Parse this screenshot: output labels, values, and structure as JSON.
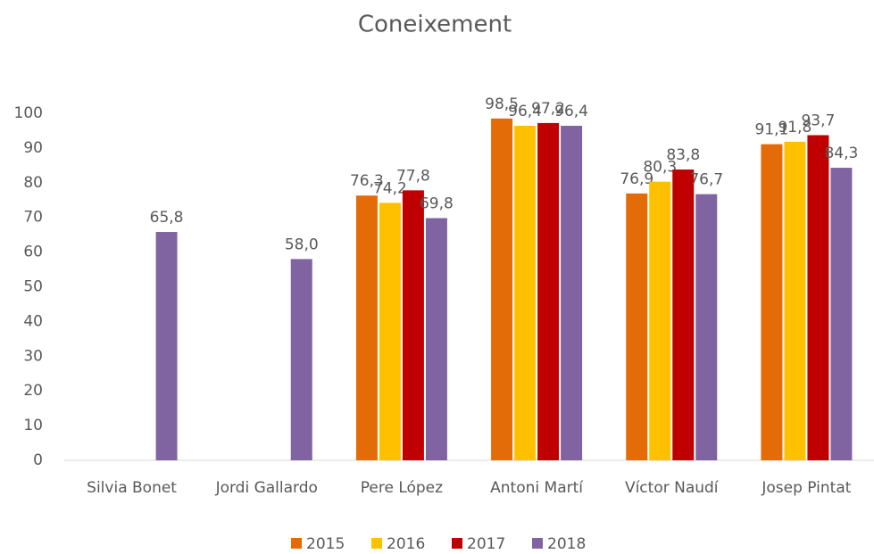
{
  "chart_data": {
    "type": "bar",
    "title": "Coneixement",
    "categories": [
      "Silvia Bonet",
      "Jordi Gallardo",
      "Pere López",
      "Antoni Martí",
      "Víctor Naudí",
      "Josep Pintat"
    ],
    "series": [
      {
        "name": "2015",
        "color": "#e36c09",
        "values": [
          null,
          null,
          76.3,
          98.5,
          76.9,
          91.1
        ],
        "value_labels": [
          null,
          null,
          "76,3",
          "98,5",
          "76,9",
          "91,1"
        ]
      },
      {
        "name": "2016",
        "color": "#ffc000",
        "values": [
          null,
          null,
          74.2,
          96.4,
          80.3,
          91.8
        ],
        "value_labels": [
          null,
          null,
          "74,2",
          "96,4",
          "80,3",
          "91,8"
        ]
      },
      {
        "name": "2017",
        "color": "#c00000",
        "values": [
          null,
          null,
          77.8,
          97.2,
          83.8,
          93.7
        ],
        "value_labels": [
          null,
          null,
          "77,8",
          "97,2",
          "83,8",
          "93,7"
        ]
      },
      {
        "name": "2018",
        "color": "#8064a2",
        "values": [
          65.8,
          58.0,
          69.8,
          96.4,
          76.7,
          84.3
        ],
        "value_labels": [
          "65,8",
          "58,0",
          "69,8",
          "96,4",
          "76,7",
          "84,3"
        ]
      }
    ],
    "ylim": [
      0,
      100
    ],
    "yticks": [
      0,
      10,
      20,
      30,
      40,
      50,
      60,
      70,
      80,
      90,
      100
    ],
    "grid": false,
    "legend": "bottom"
  }
}
